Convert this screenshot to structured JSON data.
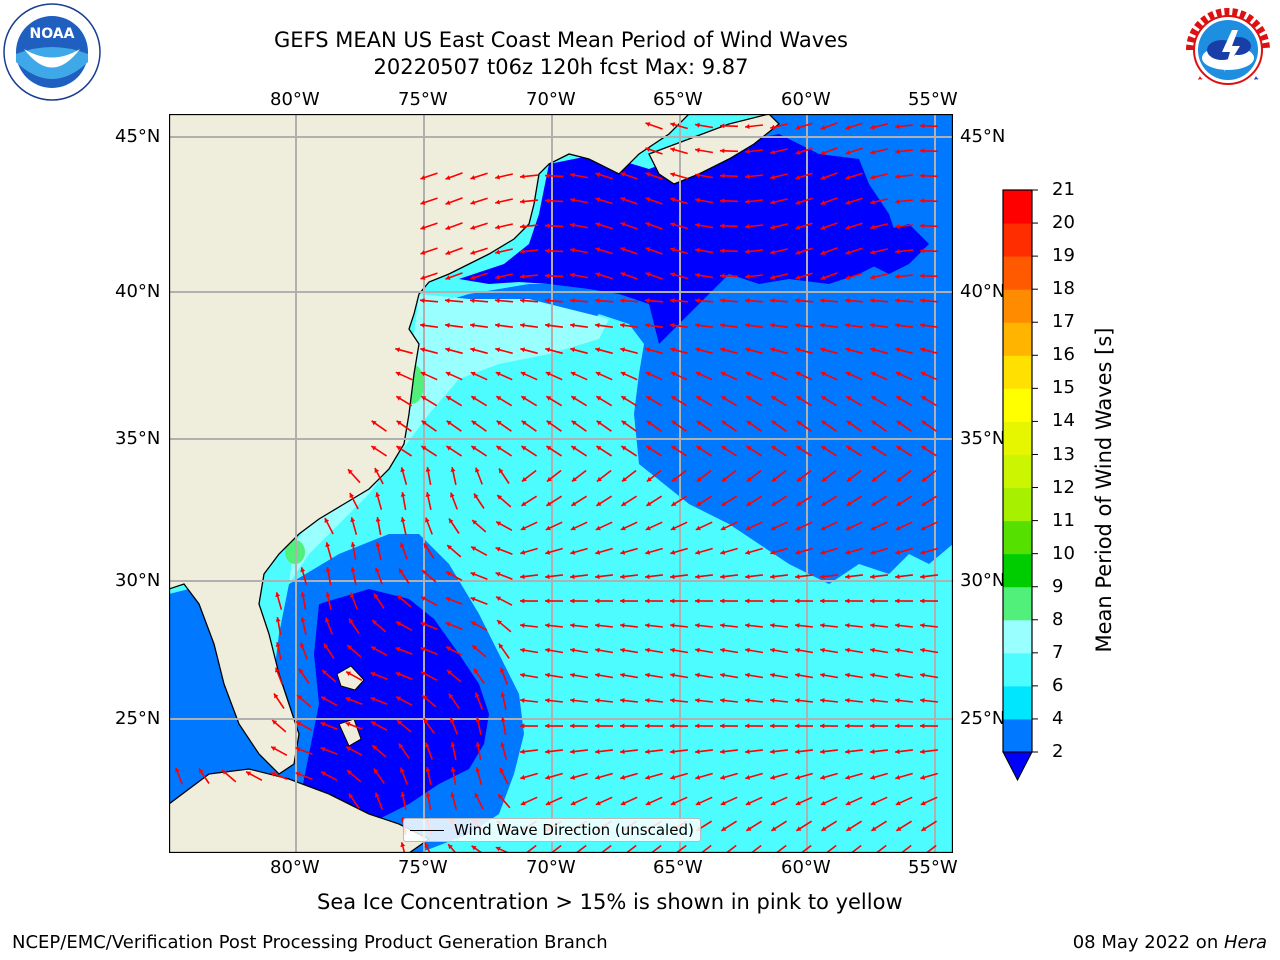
{
  "title": {
    "line1": "GEFS MEAN US East Coast Mean Period of Wind Waves",
    "line2": "20220507 t06z 120h fcst   Max: 9.87"
  },
  "logos": {
    "left": {
      "name": "noaa-logo",
      "text": "NOAA",
      "ring_text": "NATIONAL OCEANIC AND ATMOSPHERIC ADMINISTRATION · U.S. DEPARTMENT OF COMMERCE"
    },
    "right": {
      "name": "nws-logo",
      "ring_text": "NATIONAL WEATHER SERVICE"
    }
  },
  "map": {
    "lon_labels": [
      "80°W",
      "75°W",
      "70°W",
      "65°W",
      "60°W",
      "55°W"
    ],
    "lat_labels": [
      "45°N",
      "40°N",
      "35°N",
      "30°N",
      "25°N"
    ],
    "legend": "Wind Wave Direction (unscaled)",
    "colors": {
      "land": "#efeedd",
      "coast": "#000000",
      "grid": "#b0b0b0",
      "arrow": "#ff0000"
    }
  },
  "colorbar": {
    "label": "Mean Period of Wind Waves [s]",
    "ticks": [
      "2",
      "4",
      "6",
      "7",
      "8",
      "9",
      "10",
      "11",
      "12",
      "13",
      "14",
      "15",
      "16",
      "17",
      "18",
      "19",
      "20",
      "21"
    ],
    "colors": [
      "#0078ff",
      "#00e6ff",
      "#4dfcff",
      "#99ffff",
      "#50f07a",
      "#00cd00",
      "#55e000",
      "#a6f000",
      "#cbf500",
      "#e6f500",
      "#ffff00",
      "#ffe000",
      "#ffb400",
      "#ff8c00",
      "#ff5a00",
      "#ff2d00",
      "#ff0000"
    ],
    "under_color": "#0000ff"
  },
  "notes": {
    "ice": "Sea Ice Concentration > 15% is shown in pink to yellow"
  },
  "footer": {
    "left": "NCEP/EMC/Verification Post Processing Product Generation Branch",
    "right_date": "08 May 2022 on ",
    "right_host": "Hera"
  }
}
